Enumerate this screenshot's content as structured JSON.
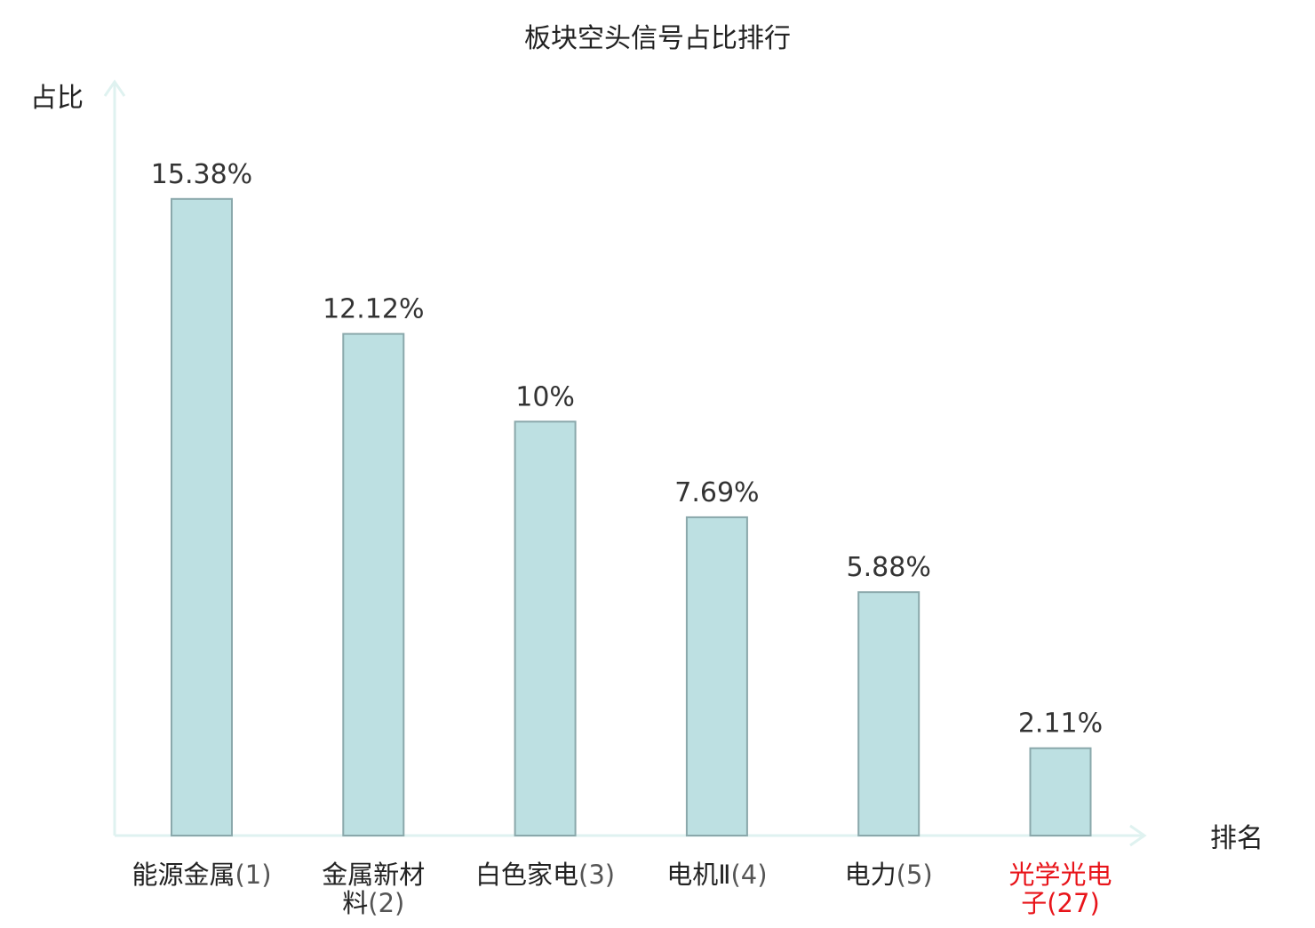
{
  "chart_data": {
    "type": "bar",
    "title": "板块空头信号占比排行",
    "ylabel": "占比",
    "xlabel": "排名",
    "categories": [
      {
        "name_lines": [
          "能源金属"
        ],
        "rank_text": "(1)",
        "highlight": false
      },
      {
        "name_lines": [
          "金属新材",
          "料"
        ],
        "rank_text": "(2)",
        "highlight": false
      },
      {
        "name_lines": [
          "白色家电"
        ],
        "rank_text": "(3)",
        "highlight": false
      },
      {
        "name_lines": [
          "电机Ⅱ"
        ],
        "rank_text": "(4)",
        "highlight": false
      },
      {
        "name_lines": [
          "电力"
        ],
        "rank_text": "(5)",
        "highlight": false
      },
      {
        "name_lines": [
          "光学光电",
          "子"
        ],
        "rank_text": "(27)",
        "highlight": true
      }
    ],
    "values": [
      15.38,
      12.12,
      10,
      7.69,
      5.88,
      2.11
    ],
    "value_labels": [
      "15.38%",
      "12.12%",
      "10%",
      "7.69%",
      "5.88%",
      "2.11%"
    ],
    "unit": "%",
    "ylim": [
      0,
      16.6
    ],
    "grid": false,
    "colors": {
      "bar_fill": "#bde0e2",
      "bar_stroke": "#8aa8ab",
      "axis": "#dff2f0",
      "text": "#222222",
      "rank_text": "#555555",
      "highlight": "#e8141a"
    }
  }
}
